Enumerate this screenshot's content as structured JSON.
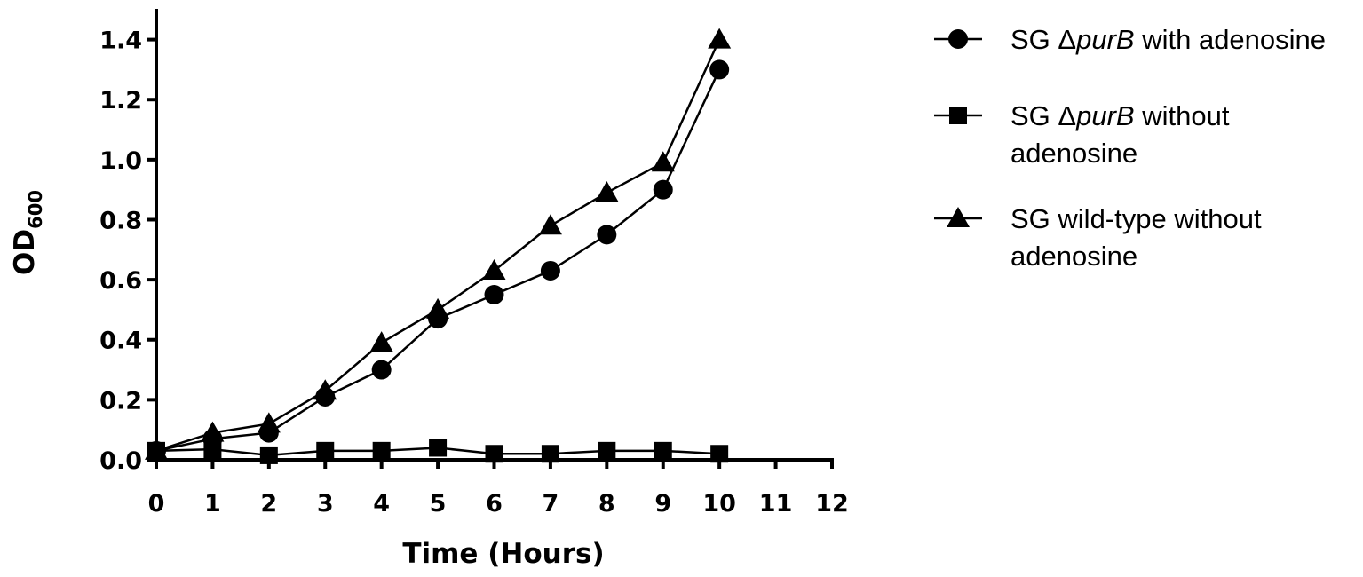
{
  "chart_data": {
    "type": "line",
    "xlabel": "Time (Hours)",
    "ylabel_main": "OD",
    "ylabel_sub": "600",
    "xlim": [
      0,
      12
    ],
    "ylim": [
      0,
      1.5
    ],
    "x_ticks": [
      "0",
      "1",
      "2",
      "3",
      "4",
      "5",
      "6",
      "7",
      "8",
      "9",
      "10",
      "11",
      "12"
    ],
    "y_ticks": [
      "0.0",
      "0.2",
      "0.4",
      "0.6",
      "0.8",
      "1.0",
      "1.2",
      "1.4"
    ],
    "grid": false,
    "legend_position": "right",
    "x": [
      0,
      1,
      2,
      3,
      4,
      5,
      6,
      7,
      8,
      9,
      10
    ],
    "series": [
      {
        "name_prefix": "SG Δ",
        "name_italic": "purB",
        "name_suffix": " with adenosine",
        "marker": "circle",
        "values": [
          0.03,
          0.07,
          0.09,
          0.21,
          0.3,
          0.47,
          0.55,
          0.63,
          0.75,
          0.9,
          1.3
        ]
      },
      {
        "name_prefix": "SG Δ",
        "name_italic": "purB",
        "name_suffix": " without",
        "name_line2": "adenosine",
        "marker": "square",
        "values": [
          0.03,
          0.035,
          0.015,
          0.03,
          0.03,
          0.04,
          0.02,
          0.02,
          0.03,
          0.03,
          0.02
        ]
      },
      {
        "name_prefix": "SG wild-type without",
        "name_italic": "",
        "name_suffix": "",
        "name_line2": "adenosine",
        "marker": "triangle",
        "values": [
          0.03,
          0.09,
          0.12,
          0.23,
          0.39,
          0.5,
          0.63,
          0.78,
          0.89,
          0.99,
          1.4
        ]
      }
    ],
    "color": "#000000"
  }
}
